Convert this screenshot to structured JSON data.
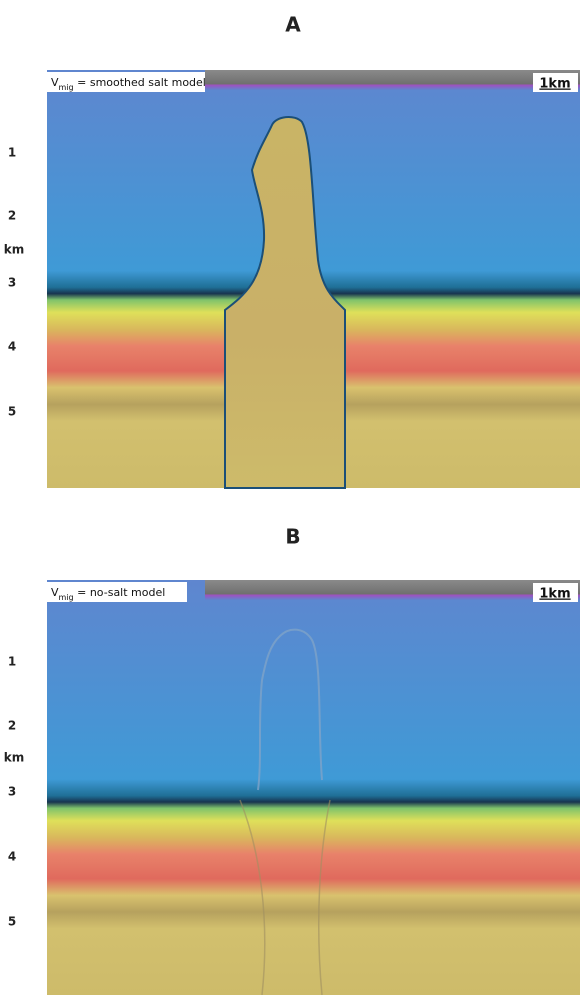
{
  "panels": [
    {
      "label": "A",
      "caption": {
        "symbol": "V",
        "subscript": "mig",
        "text": " = smoothed salt model"
      },
      "scale": "1km",
      "depth_ticks": [
        "1",
        "2",
        "3",
        "4",
        "5"
      ],
      "depth_unit": "km"
    },
    {
      "label": "B",
      "caption": {
        "symbol": "V",
        "subscript": "mig",
        "text": " = no-salt model"
      },
      "scale": "1km",
      "depth_ticks": [
        "1",
        "2",
        "3",
        "4",
        "5"
      ],
      "depth_unit": "km"
    }
  ]
}
